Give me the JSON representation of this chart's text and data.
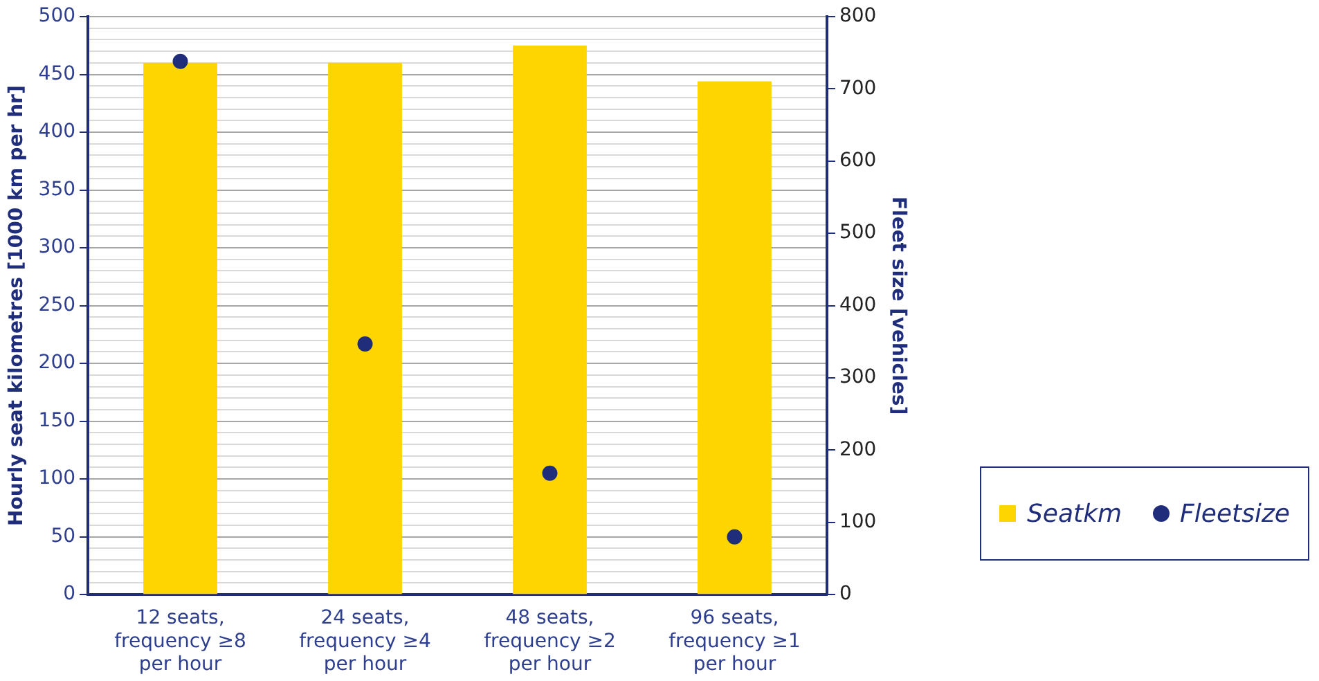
{
  "chart_data": {
    "type": "bar",
    "categories": [
      "12 seats, frequency ≥8 per hour",
      "24 seats, frequency ≥4 per hour",
      "48 seats, frequency ≥2 per hour",
      "96 seats, frequency ≥1 per hour"
    ],
    "series": [
      {
        "name": "Seatkm",
        "color": "#ffd500",
        "values": [
          460,
          460,
          475,
          444
        ]
      },
      {
        "name": "Fleetsize",
        "type": "scatter",
        "axis": "y2",
        "color": "#1f2d7a",
        "values": [
          738,
          347,
          168,
          80
        ]
      }
    ],
    "ylabel": "Hourly seat kilometres [1000 km per hr]",
    "y2label": "Fleet size [vehicles]",
    "ylim": [
      0,
      500
    ],
    "yticks": [
      0,
      {
        "value": 10,
        "label": null
      },
      {
        "value": 20,
        "label": null
      },
      {
        "value": 30,
        "label": null
      },
      {
        "value": 40,
        "label": null
      },
      50,
      {
        "value": 60,
        "label": null
      },
      {
        "value": 70,
        "label": null
      },
      {
        "value": 80,
        "label": null
      },
      {
        "value": 90,
        "label": null
      },
      100,
      {
        "value": 110,
        "label": null
      },
      {
        "value": 120,
        "label": null
      },
      {
        "value": 130,
        "label": null
      },
      {
        "value": 140,
        "label": null
      },
      150,
      {
        "value": 160,
        "label": null
      },
      {
        "value": 170,
        "label": null
      },
      {
        "value": 180,
        "label": null
      },
      {
        "value": 190,
        "label": null
      },
      200,
      {
        "value": 210,
        "label": null
      },
      {
        "value": 220,
        "label": null
      },
      {
        "value": 230,
        "label": null
      },
      {
        "value": 240,
        "label": null
      },
      250,
      {
        "value": 260,
        "label": null
      },
      {
        "value": 270,
        "label": null
      },
      {
        "value": 280,
        "label": null
      },
      {
        "value": 290,
        "label": null
      },
      300,
      {
        "value": 310,
        "label": null
      },
      {
        "value": 320,
        "label": null
      },
      {
        "value": 330,
        "label": null
      },
      {
        "value": 340,
        "label": null
      },
      350,
      {
        "value": 360,
        "label": null
      },
      {
        "value": 370,
        "label": null
      },
      {
        "value": 380,
        "label": null
      },
      {
        "value": 390,
        "label": null
      },
      400,
      {
        "value": 410,
        "label": null
      },
      {
        "value": 420,
        "label": null
      },
      {
        "value": 430,
        "label": null
      },
      {
        "value": 440,
        "label": null
      },
      450,
      {
        "value": 460,
        "label": null
      },
      {
        "value": 470,
        "label": null
      },
      {
        "value": 480,
        "label": null
      },
      {
        "value": 490,
        "label": null
      },
      500
    ],
    "y2lim": [
      0,
      800
    ],
    "y2ticks": [
      0,
      100,
      200,
      300,
      400,
      500,
      600,
      700,
      800
    ],
    "grid": "y",
    "legend": "bottom right",
    "marker": "circle"
  }
}
